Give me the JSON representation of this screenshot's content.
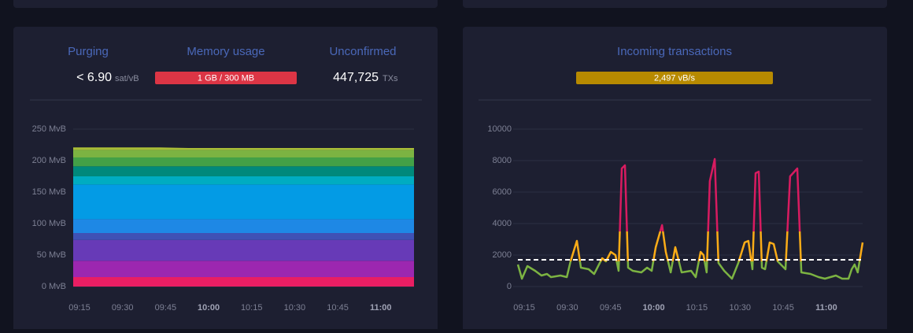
{
  "stats": [
    {
      "label": "Purging",
      "value": "< 6.90",
      "unit": "sat/vB"
    },
    {
      "label": "Memory usage",
      "value": "1 GB / 300 MB"
    },
    {
      "label": "Unconfirmed",
      "value": "447,725",
      "unit": "TXs"
    }
  ],
  "incoming": {
    "label": "Incoming transactions",
    "value": "2,497 vB/s"
  },
  "chart_data": [
    {
      "type": "stacked_area",
      "x": [
        552.8,
        563,
        573,
        583,
        593,
        603,
        613,
        623,
        633,
        643,
        653,
        663,
        671.6
      ],
      "xlim": [
        552.8,
        671.6
      ],
      "xticks": [
        {
          "value": 555,
          "label": "09:15"
        },
        {
          "value": 570,
          "label": "09:30"
        },
        {
          "value": 585,
          "label": "09:45"
        },
        {
          "value": 600,
          "label": "10:00"
        },
        {
          "value": 615,
          "label": "10:15"
        },
        {
          "value": 630,
          "label": "10:30"
        },
        {
          "value": 645,
          "label": "10:45"
        },
        {
          "value": 660,
          "label": "11:00"
        }
      ],
      "ylim": [
        0,
        250
      ],
      "yticks": [
        {
          "value": 0,
          "label": "0 MvB"
        },
        {
          "value": 50,
          "label": "50 MvB"
        },
        {
          "value": 100,
          "label": "100 MvB"
        },
        {
          "value": 150,
          "label": "150 MvB"
        },
        {
          "value": 200,
          "label": "200 MvB"
        },
        {
          "value": 250,
          "label": "250 MvB"
        }
      ],
      "grid": true,
      "series": [
        {
          "color": "#e91e63",
          "values": [
            15,
            15,
            15,
            15,
            15,
            15,
            15,
            15,
            15,
            15,
            15,
            15,
            15
          ]
        },
        {
          "color": "#9c27b0",
          "values": [
            26,
            26,
            26,
            26,
            26,
            26,
            26,
            26,
            26,
            26,
            26,
            26,
            26
          ]
        },
        {
          "color": "#673ab7",
          "values": [
            33,
            33,
            33,
            33,
            33,
            33,
            33,
            33,
            33,
            33,
            33,
            33,
            33
          ]
        },
        {
          "color": "#3f51b5",
          "values": [
            11,
            11,
            11,
            11,
            11,
            11,
            11,
            11,
            11,
            11,
            11,
            11,
            11
          ]
        },
        {
          "color": "#1e88e5",
          "values": [
            22,
            22,
            22,
            22,
            22,
            22,
            22,
            22,
            22,
            22,
            22,
            22,
            22
          ]
        },
        {
          "color": "#039be5",
          "values": [
            55,
            55,
            55,
            55,
            55,
            55,
            55,
            55,
            55,
            55,
            55,
            55,
            55
          ]
        },
        {
          "color": "#00acc1",
          "values": [
            13,
            13,
            13,
            13,
            13,
            13,
            13,
            13,
            13,
            13,
            13,
            13,
            13
          ]
        },
        {
          "color": "#00897b",
          "values": [
            16,
            16,
            16,
            16,
            16,
            16,
            16,
            16,
            16,
            16,
            16,
            16,
            16
          ]
        },
        {
          "color": "#43a047",
          "values": [
            14,
            14,
            14,
            14,
            14,
            14,
            14,
            14,
            14,
            14,
            14,
            14,
            14
          ]
        },
        {
          "color": "#7cb342",
          "values": [
            12,
            12,
            12,
            12,
            12,
            12,
            12,
            12,
            12,
            12,
            12,
            12,
            12
          ]
        },
        {
          "color": "#aabd37",
          "values": [
            4,
            4,
            4,
            4,
            3,
            3,
            3,
            3,
            3,
            3,
            3,
            3,
            3
          ]
        }
      ]
    },
    {
      "type": "line",
      "x": [
        552.8,
        554.2,
        556.1,
        558.8,
        561.0,
        562.9,
        564.3,
        567.6,
        569.8,
        571.1,
        573.3,
        574.7,
        577.4,
        579.3,
        582.1,
        583.4,
        585.1,
        586.7,
        587.8,
        588.9,
        590.0,
        591.1,
        592.7,
        595.7,
        597.7,
        599.3,
        600.7,
        602.9,
        604.2,
        605.9,
        607.5,
        609.7,
        613.0,
        614.6,
        616.3,
        617.3,
        618.4,
        619.5,
        621.2,
        622.5,
        624.5,
        627.2,
        629.4,
        631.6,
        632.9,
        634.3,
        635.4,
        636.5,
        637.6,
        638.7,
        640.3,
        641.7,
        643.1,
        645.8,
        647.4,
        649.9,
        651.3,
        654.5,
        657.3,
        659.5,
        661.4,
        663.3,
        665.5,
        667.7,
        668.8,
        669.8,
        670.9,
        672.6
      ],
      "values": [
        1400,
        500,
        1300,
        1000,
        700,
        800,
        600,
        700,
        600,
        1600,
        2900,
        1200,
        1100,
        800,
        1800,
        1600,
        2200,
        2000,
        1000,
        7500,
        7700,
        1200,
        1000,
        900,
        1200,
        1000,
        2500,
        3900,
        2200,
        900,
        2500,
        900,
        1000,
        600,
        2200,
        2000,
        900,
        6700,
        8100,
        1500,
        1000,
        500,
        1500,
        2800,
        2900,
        1100,
        7200,
        7300,
        1200,
        1100,
        2800,
        2700,
        1600,
        1100,
        7000,
        7500,
        900,
        800,
        600,
        500,
        600,
        700,
        500,
        500,
        1100,
        1400,
        900,
        2800
      ],
      "xlim": [
        552.8,
        672.6
      ],
      "xticks": [
        {
          "value": 555,
          "label": "09:15"
        },
        {
          "value": 570,
          "label": "09:30"
        },
        {
          "value": 585,
          "label": "09:45"
        },
        {
          "value": 600,
          "label": "10:00"
        },
        {
          "value": 615,
          "label": "10:15"
        },
        {
          "value": 630,
          "label": "10:30"
        },
        {
          "value": 645,
          "label": "10:45"
        },
        {
          "value": 660,
          "label": "11:00"
        }
      ],
      "ylim": [
        0,
        10000
      ],
      "yticks": [
        0,
        2000,
        4000,
        6000,
        8000,
        10000
      ],
      "grid": true,
      "color_bands": [
        {
          "below": 1600,
          "color": "#7cb342"
        },
        {
          "below": 3500,
          "color": "#fbac17"
        },
        {
          "color": "#d81b60"
        }
      ],
      "reference_line": 1700
    }
  ]
}
